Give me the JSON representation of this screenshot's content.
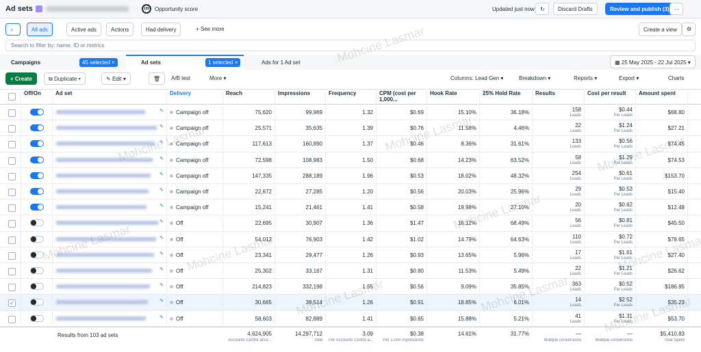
{
  "header": {
    "title": "Ad sets",
    "score_badge": "100",
    "score_label": "Opportunity score",
    "updated": "Updated just now",
    "discard": "Discard Drafts",
    "publish": "Review and publish (3)"
  },
  "views": {
    "items": [
      "All ads",
      "Active ads",
      "Actions",
      "Had delivery",
      "+ See more"
    ],
    "create_view": "Create a view"
  },
  "search": {
    "placeholder": "Search to filter by: name, ID or metrics"
  },
  "tabs": {
    "campaigns": "Campaigns",
    "campaigns_selected": "45 selected",
    "adsets": "Ad sets",
    "adsets_selected": "1 selected",
    "ads": "Ads for 1 Ad set",
    "date_range": "25 May 2025 - 22 Jul 2025"
  },
  "toolbar": {
    "create": "+ Create",
    "duplicate": "Duplicate",
    "edit": "Edit",
    "ab_test": "A/B test",
    "more": "More",
    "columns": "Columns: Lead Gen",
    "breakdown": "Breakdown",
    "reports": "Reports",
    "export": "Export",
    "charts": "Charts"
  },
  "watermark": "Mohcine Lasmar",
  "table": {
    "columns": [
      "Off/On",
      "Ad set",
      "Delivery",
      "Reach",
      "Impressions",
      "Frequency",
      "CPM (cost per 1,000...",
      "Hook Rate",
      "25% Hold Rate",
      "Results",
      "Cost per result",
      "Amount spent"
    ],
    "results_sub": "Leads",
    "cpr_sub": "Per Leads",
    "rows": [
      {
        "on": true,
        "checked": false,
        "delivery": "Campaign off",
        "cells": [
          "75,620",
          "99,969",
          "1.32",
          "$0.69",
          "15.10%",
          "36.18%",
          "158",
          "$0.44",
          "$68.80"
        ]
      },
      {
        "on": true,
        "checked": false,
        "delivery": "Campaign off",
        "cells": [
          "25,571",
          "35,635",
          "1.39",
          "$0.76",
          "11.58%",
          "4.46%",
          "22",
          "$1.24",
          "$27.21"
        ]
      },
      {
        "on": true,
        "checked": false,
        "delivery": "Campaign off",
        "cells": [
          "117,613",
          "160,890",
          "1.37",
          "$0.46",
          "8.36%",
          "31.61%",
          "133",
          "$0.56",
          "$74.45"
        ]
      },
      {
        "on": true,
        "checked": false,
        "delivery": "Campaign off",
        "cells": [
          "72,598",
          "108,983",
          "1.50",
          "$0.68",
          "14.23%",
          "63.52%",
          "58",
          "$1.29",
          "$74.53"
        ]
      },
      {
        "on": true,
        "checked": false,
        "delivery": "Campaign off",
        "cells": [
          "147,335",
          "288,189",
          "1.96",
          "$0.53",
          "18.02%",
          "48.32%",
          "254",
          "$0.61",
          "$153.70"
        ]
      },
      {
        "on": true,
        "checked": false,
        "delivery": "Campaign off",
        "cells": [
          "22,672",
          "27,285",
          "1.20",
          "$0.56",
          "20.03%",
          "25.96%",
          "29",
          "$0.53",
          "$15.40"
        ]
      },
      {
        "on": true,
        "checked": false,
        "delivery": "Campaign off",
        "cells": [
          "15,241",
          "21,461",
          "1.41",
          "$0.58",
          "19.98%",
          "27.10%",
          "20",
          "$0.62",
          "$12.48"
        ]
      },
      {
        "on": false,
        "checked": false,
        "delivery": "Off",
        "cells": [
          "22,695",
          "30,907",
          "1.36",
          "$1.47",
          "16.12%",
          "68.49%",
          "56",
          "$0.81",
          "$45.50"
        ]
      },
      {
        "on": false,
        "checked": false,
        "delivery": "Off",
        "cells": [
          "54,012",
          "76,903",
          "1.42",
          "$1.02",
          "14.79%",
          "64.63%",
          "110",
          "$0.72",
          "$78.65"
        ]
      },
      {
        "on": false,
        "checked": false,
        "delivery": "Off",
        "cells": [
          "23,341",
          "29,477",
          "1.26",
          "$0.93",
          "13.65%",
          "5.96%",
          "17",
          "$1.61",
          "$27.40"
        ]
      },
      {
        "on": false,
        "checked": false,
        "delivery": "Off",
        "cells": [
          "25,302",
          "33,167",
          "1.31",
          "$0.80",
          "11.53%",
          "5.49%",
          "22",
          "$1.21",
          "$26.62"
        ]
      },
      {
        "on": false,
        "checked": false,
        "delivery": "Off",
        "cells": [
          "214,823",
          "332,198",
          "1.55",
          "$0.56",
          "9.09%",
          "35.85%",
          "363",
          "$0.52",
          "$186.95"
        ]
      },
      {
        "on": false,
        "checked": true,
        "delivery": "Off",
        "cells": [
          "30,665",
          "38,514",
          "1.26",
          "$0.91",
          "18.85%",
          "6.01%",
          "14",
          "$2.52",
          "$35.23"
        ]
      },
      {
        "on": false,
        "checked": false,
        "delivery": "Off",
        "cells": [
          "58,603",
          "82,889",
          "1.41",
          "$0.65",
          "15.88%",
          "5.21%",
          "41",
          "$1.31",
          "$53.70"
        ]
      }
    ],
    "totals": {
      "label": "Results from 103 ad sets",
      "cells": [
        [
          "4,624,905",
          "Accounts Centre acco..."
        ],
        [
          "14,297,712",
          "Total"
        ],
        [
          "3.09",
          "Per Accounts Centre a..."
        ],
        [
          "$0.38",
          "Per 1,000 impressions"
        ],
        [
          "14.61%",
          ""
        ],
        [
          "31.77%",
          ""
        ],
        [
          "—",
          "Multiple conversions"
        ],
        [
          "—",
          "Multiple conversions"
        ],
        [
          "$5,410.83",
          "Total Spent"
        ]
      ]
    }
  }
}
